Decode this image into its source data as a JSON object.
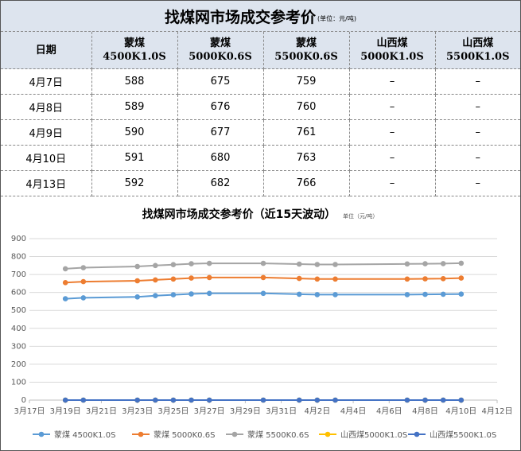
{
  "page": {
    "title": "找煤网市场成交参考价",
    "title_unit": "(单位：元/吨)"
  },
  "table": {
    "header_date": "日期",
    "columns": [
      {
        "name": "蒙煤",
        "spec": "4500K1.0S"
      },
      {
        "name": "蒙煤",
        "spec": "5000K0.6S"
      },
      {
        "name": "蒙煤",
        "spec": "5500K0.6S"
      },
      {
        "name": "山西煤",
        "spec": "5000K1.0S"
      },
      {
        "name": "山西煤",
        "spec": "5500K1.0S"
      }
    ],
    "rows": [
      {
        "date": "4月7日",
        "values": [
          "588",
          "675",
          "759",
          "–",
          "–"
        ]
      },
      {
        "date": "4月8日",
        "values": [
          "589",
          "676",
          "760",
          "–",
          "–"
        ]
      },
      {
        "date": "4月9日",
        "values": [
          "590",
          "677",
          "761",
          "–",
          "–"
        ]
      },
      {
        "date": "4月10日",
        "values": [
          "591",
          "680",
          "763",
          "–",
          "–"
        ]
      },
      {
        "date": "4月13日",
        "values": [
          "592",
          "682",
          "766",
          "–",
          "–"
        ]
      }
    ]
  },
  "chart_data": {
    "type": "line",
    "title": "找煤网市场成交参考价（近15天波动）",
    "title_unit": "单位（元/吨）",
    "ylim": [
      0,
      900
    ],
    "y_ticks": [
      0,
      100,
      200,
      300,
      400,
      500,
      600,
      700,
      800,
      900
    ],
    "x_tick_labels": [
      "3月17日",
      "3月19日",
      "3月21日",
      "3月23日",
      "3月25日",
      "3月27日",
      "3月29日",
      "3月31日",
      "4月2日",
      "4月4日",
      "4月6日",
      "4月8日",
      "4月10日",
      "4月12日"
    ],
    "x": [
      "3月19日",
      "3月20日",
      "3月23日",
      "3月24日",
      "3月25日",
      "3月26日",
      "3月27日",
      "3月30日",
      "4月1日",
      "4月2日",
      "4月3日",
      "4月7日",
      "4月8日",
      "4月9日",
      "4月10日"
    ],
    "grid": true,
    "legend_position": "bottom",
    "series": [
      {
        "name": "蒙煤 4500K1.0S",
        "color": "#5b9bd5",
        "values": [
          565,
          570,
          575,
          582,
          587,
          592,
          595,
          595,
          590,
          588,
          588,
          588,
          589,
          590,
          591
        ]
      },
      {
        "name": "蒙煤 5000K0.6S",
        "color": "#ed7d31",
        "values": [
          655,
          660,
          665,
          670,
          675,
          680,
          683,
          683,
          678,
          675,
          675,
          675,
          676,
          677,
          680
        ]
      },
      {
        "name": "蒙煤 5500K0.6S",
        "color": "#a5a5a5",
        "values": [
          732,
          738,
          745,
          750,
          755,
          760,
          762,
          762,
          758,
          756,
          756,
          759,
          760,
          761,
          763
        ]
      },
      {
        "name": "山西煤5000K1.0S",
        "color": "#ffc000",
        "values": [
          0,
          0,
          0,
          0,
          0,
          0,
          0,
          0,
          0,
          0,
          0,
          0,
          0,
          0,
          0
        ]
      },
      {
        "name": "山西煤5500K1.0S",
        "color": "#4472c4",
        "values": [
          0,
          0,
          0,
          0,
          0,
          0,
          0,
          0,
          0,
          0,
          0,
          0,
          0,
          0,
          0
        ]
      }
    ]
  }
}
